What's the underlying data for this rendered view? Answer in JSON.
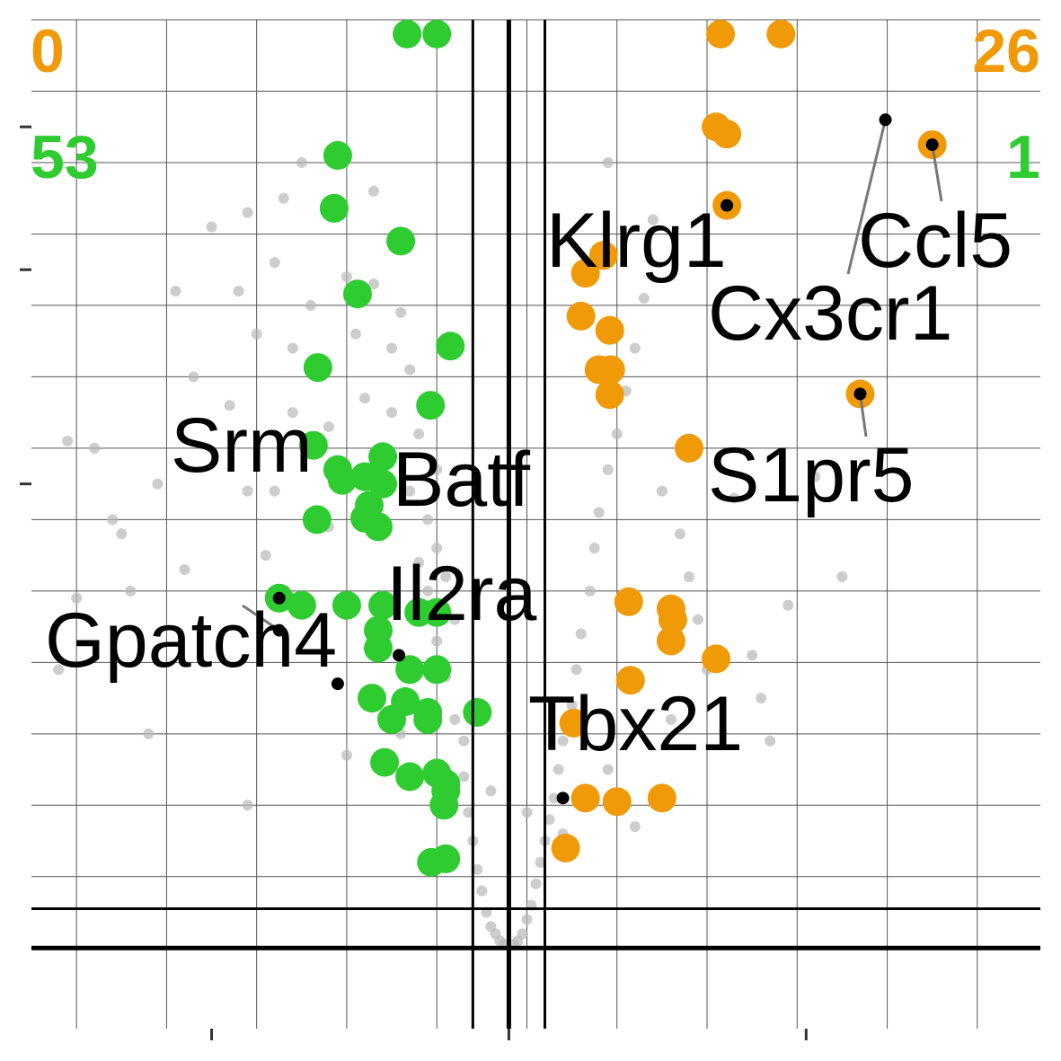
{
  "chart_data": {
    "type": "scatter",
    "title": "",
    "xlabel": "",
    "ylabel": "",
    "xlim": [
      -5.3,
      5.9
    ],
    "ylim": [
      -0.5,
      13
    ],
    "grid": true,
    "fold_change_cutoff": 0.4,
    "significance_cutoff": 0.55,
    "counts": {
      "left_top": "0",
      "right_top": "26",
      "left_second": "53",
      "right_second": "1"
    },
    "colors": {
      "up": "#f09a07",
      "down": "#2ecc30",
      "background": "#b8b8b8",
      "count_top": "#f09a07",
      "count_second": "#2ecc30",
      "grid": "#555555",
      "threshold": "#000000"
    },
    "series": [
      {
        "group": "down",
        "points": [
          [
            -1.13,
            12.8
          ],
          [
            -0.8,
            12.8
          ],
          [
            -1.9,
            11.1
          ],
          [
            -1.94,
            10.36
          ],
          [
            -1.2,
            9.9
          ],
          [
            -1.68,
            9.16
          ],
          [
            -0.65,
            8.43
          ],
          [
            -2.12,
            8.13
          ],
          [
            -0.87,
            7.6
          ],
          [
            -2.17,
            7.04
          ],
          [
            -1.4,
            6.88
          ],
          [
            -1.9,
            6.7
          ],
          [
            -1.85,
            6.55
          ],
          [
            -1.6,
            6.6
          ],
          [
            -1.4,
            6.5
          ],
          [
            -1.55,
            6.2
          ],
          [
            -2.13,
            6.0
          ],
          [
            -1.6,
            6.02
          ],
          [
            -1.45,
            5.9
          ],
          [
            -2.55,
            4.9
          ],
          [
            -2.3,
            4.8
          ],
          [
            -1.8,
            4.8
          ],
          [
            -1.4,
            4.8
          ],
          [
            -1.0,
            4.7
          ],
          [
            -0.8,
            4.7
          ],
          [
            -1.45,
            4.45
          ],
          [
            -1.45,
            4.2
          ],
          [
            -1.1,
            3.9
          ],
          [
            -0.8,
            3.9
          ],
          [
            -1.52,
            3.5
          ],
          [
            -1.15,
            3.45
          ],
          [
            -0.9,
            3.3
          ],
          [
            -1.3,
            3.2
          ],
          [
            -0.9,
            3.2
          ],
          [
            -1.38,
            2.6
          ],
          [
            -1.1,
            2.4
          ],
          [
            -0.8,
            2.45
          ],
          [
            -0.7,
            2.3
          ],
          [
            -0.7,
            2.2
          ],
          [
            -0.72,
            2.0
          ],
          [
            -0.86,
            1.2
          ],
          [
            -0.7,
            1.25
          ],
          [
            -0.35,
            3.3
          ]
        ]
      },
      {
        "group": "up",
        "points": [
          [
            2.35,
            12.8
          ],
          [
            3.02,
            12.8
          ],
          [
            2.3,
            11.5
          ],
          [
            2.42,
            11.4
          ],
          [
            2.42,
            10.4
          ],
          [
            4.7,
            11.25
          ],
          [
            1.05,
            9.7
          ],
          [
            0.85,
            9.45
          ],
          [
            0.8,
            8.85
          ],
          [
            1.12,
            8.65
          ],
          [
            1.0,
            8.1
          ],
          [
            1.13,
            8.1
          ],
          [
            1.12,
            7.75
          ],
          [
            3.9,
            7.76
          ],
          [
            2.0,
            7.0
          ],
          [
            1.33,
            4.85
          ],
          [
            1.8,
            4.75
          ],
          [
            1.82,
            4.6
          ],
          [
            1.8,
            4.3
          ],
          [
            2.3,
            4.05
          ],
          [
            1.35,
            3.75
          ],
          [
            0.72,
            3.15
          ],
          [
            0.85,
            2.1
          ],
          [
            1.2,
            2.05
          ],
          [
            1.7,
            2.1
          ],
          [
            0.63,
            1.4
          ]
        ]
      },
      {
        "group": "background",
        "points": [
          [
            -4.9,
            7.1
          ],
          [
            -4.6,
            7.0
          ],
          [
            -4.4,
            6.0
          ],
          [
            -4.3,
            5.8
          ],
          [
            -4.2,
            5.0
          ],
          [
            -4.8,
            4.9
          ],
          [
            -3.9,
            6.5
          ],
          [
            -3.7,
            9.2
          ],
          [
            -3.5,
            8.0
          ],
          [
            -3.6,
            5.3
          ],
          [
            -3.3,
            10.1
          ],
          [
            -3.1,
            7.6
          ],
          [
            -2.9,
            6.4
          ],
          [
            -2.7,
            5.5
          ],
          [
            -2.6,
            9.6
          ],
          [
            -2.4,
            8.4
          ],
          [
            -2.4,
            7.5
          ],
          [
            -2.3,
            11.0
          ],
          [
            -3.0,
            9.2
          ],
          [
            -2.9,
            10.3
          ],
          [
            -2.5,
            10.5
          ],
          [
            -2.8,
            8.6
          ],
          [
            -2.6,
            6.4
          ],
          [
            -2.2,
            9.0
          ],
          [
            -2.1,
            8.2
          ],
          [
            -2.0,
            7.3
          ],
          [
            -2.0,
            5.9
          ],
          [
            -1.8,
            9.4
          ],
          [
            -1.7,
            8.6
          ],
          [
            -1.6,
            7.7
          ],
          [
            -1.5,
            10.6
          ],
          [
            -1.5,
            9.3
          ],
          [
            -1.5,
            6.7
          ],
          [
            -1.3,
            8.4
          ],
          [
            -1.3,
            7.5
          ],
          [
            -1.2,
            8.9
          ],
          [
            -1.1,
            8.1
          ],
          [
            -1.1,
            6.4
          ],
          [
            -1.0,
            7.2
          ],
          [
            -1.0,
            5.4
          ],
          [
            -0.9,
            6.0
          ],
          [
            -0.9,
            5.0
          ],
          [
            -0.8,
            6.7
          ],
          [
            -0.8,
            5.6
          ],
          [
            -0.8,
            4.3
          ],
          [
            -0.7,
            5.2
          ],
          [
            -0.7,
            3.8
          ],
          [
            -0.6,
            4.6
          ],
          [
            -0.6,
            3.2
          ],
          [
            -0.5,
            2.9
          ],
          [
            -0.5,
            2.4
          ],
          [
            -0.45,
            1.9
          ],
          [
            -0.4,
            1.5
          ],
          [
            -0.35,
            1.1
          ],
          [
            -0.3,
            0.8
          ],
          [
            -0.25,
            0.5
          ],
          [
            -0.2,
            0.3
          ],
          [
            -0.15,
            0.2
          ],
          [
            -0.1,
            0.1
          ],
          [
            -0.05,
            0.05
          ],
          [
            0.05,
            0.05
          ],
          [
            0.1,
            0.1
          ],
          [
            0.15,
            0.2
          ],
          [
            0.2,
            0.4
          ],
          [
            0.25,
            0.6
          ],
          [
            0.3,
            0.9
          ],
          [
            0.35,
            1.2
          ],
          [
            0.4,
            1.5
          ],
          [
            0.45,
            1.8
          ],
          [
            0.5,
            2.1
          ],
          [
            0.55,
            2.5
          ],
          [
            0.6,
            2.9
          ],
          [
            0.7,
            3.4
          ],
          [
            0.75,
            3.9
          ],
          [
            0.8,
            4.4
          ],
          [
            0.9,
            5.0
          ],
          [
            0.95,
            5.6
          ],
          [
            1.0,
            6.1
          ],
          [
            1.1,
            6.7
          ],
          [
            1.2,
            7.2
          ],
          [
            1.3,
            7.8
          ],
          [
            1.4,
            8.4
          ],
          [
            1.5,
            9.1
          ],
          [
            1.6,
            10.2
          ],
          [
            1.1,
            11.0
          ],
          [
            1.7,
            6.4
          ],
          [
            1.9,
            5.8
          ],
          [
            2.0,
            5.2
          ],
          [
            2.1,
            4.6
          ],
          [
            2.2,
            3.9
          ],
          [
            2.5,
            6.3
          ],
          [
            2.7,
            4.1
          ],
          [
            2.9,
            2.9
          ],
          [
            3.1,
            4.8
          ],
          [
            3.4,
            6.6
          ],
          [
            3.7,
            5.2
          ],
          [
            -5.0,
            3.9
          ],
          [
            -4.0,
            3.0
          ],
          [
            -2.9,
            2.0
          ],
          [
            -1.8,
            2.7
          ],
          [
            -1.2,
            3.0
          ],
          [
            -0.2,
            2.2
          ],
          [
            0.2,
            1.9
          ],
          [
            0.6,
            1.6
          ],
          [
            1.1,
            2.5
          ],
          [
            1.4,
            1.7
          ],
          [
            1.8,
            3.2
          ],
          [
            2.8,
            3.5
          ]
        ]
      }
    ],
    "labels": [
      {
        "gene": "Srm",
        "x": -2.55,
        "y": 4.9
      },
      {
        "gene": "Gpatch4",
        "x": -2.55,
        "y": 4.45
      },
      {
        "gene": "Batf",
        "x": -1.22,
        "y": 4.1
      },
      {
        "gene": "Il2ra",
        "x": -1.9,
        "y": 3.7
      },
      {
        "gene": "Tbx21",
        "x": 0.6,
        "y": 2.1
      },
      {
        "gene": "Klrg1",
        "x": 2.42,
        "y": 10.4
      },
      {
        "gene": "Cx3cr1",
        "x": 4.18,
        "y": 11.6
      },
      {
        "gene": "Ccl5",
        "x": 4.7,
        "y": 11.25
      },
      {
        "gene": "S1pr5",
        "x": 3.9,
        "y": 7.76
      }
    ]
  }
}
